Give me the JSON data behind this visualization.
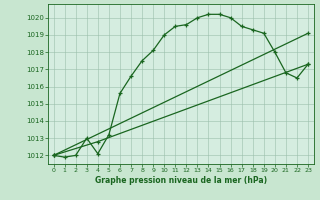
{
  "title": "Graphe pression niveau de la mer (hPa)",
  "background_color": "#c8e6d0",
  "plot_bg_color": "#d5ede0",
  "grid_color": "#9abfab",
  "line_color": "#1a6620",
  "xlim": [
    -0.5,
    23.5
  ],
  "ylim": [
    1011.5,
    1020.8
  ],
  "yticks": [
    1012,
    1013,
    1014,
    1015,
    1016,
    1017,
    1018,
    1019,
    1020
  ],
  "xticks": [
    0,
    1,
    2,
    3,
    4,
    5,
    6,
    7,
    8,
    9,
    10,
    11,
    12,
    13,
    14,
    15,
    16,
    17,
    18,
    19,
    20,
    21,
    22,
    23
  ],
  "line1_x": [
    0,
    1,
    2,
    3,
    4,
    5,
    6,
    7,
    8,
    9,
    10,
    11,
    12,
    13,
    14,
    15,
    16,
    17,
    18,
    19,
    20,
    21,
    22,
    23
  ],
  "line1_y": [
    1012.0,
    1011.9,
    1012.0,
    1013.0,
    1012.1,
    1013.2,
    1015.6,
    1016.6,
    1017.5,
    1018.1,
    1019.0,
    1019.5,
    1019.6,
    1020.0,
    1020.2,
    1020.2,
    1020.0,
    1019.5,
    1019.3,
    1019.1,
    1018.0,
    1016.8,
    1016.5,
    1017.3
  ],
  "line2_x": [
    0,
    23
  ],
  "line2_y": [
    1012.0,
    1019.1
  ],
  "line3_x": [
    0,
    4,
    23
  ],
  "line3_y": [
    1012.0,
    1012.8,
    1017.3
  ],
  "marker_size": 3.5,
  "linewidth": 0.9
}
